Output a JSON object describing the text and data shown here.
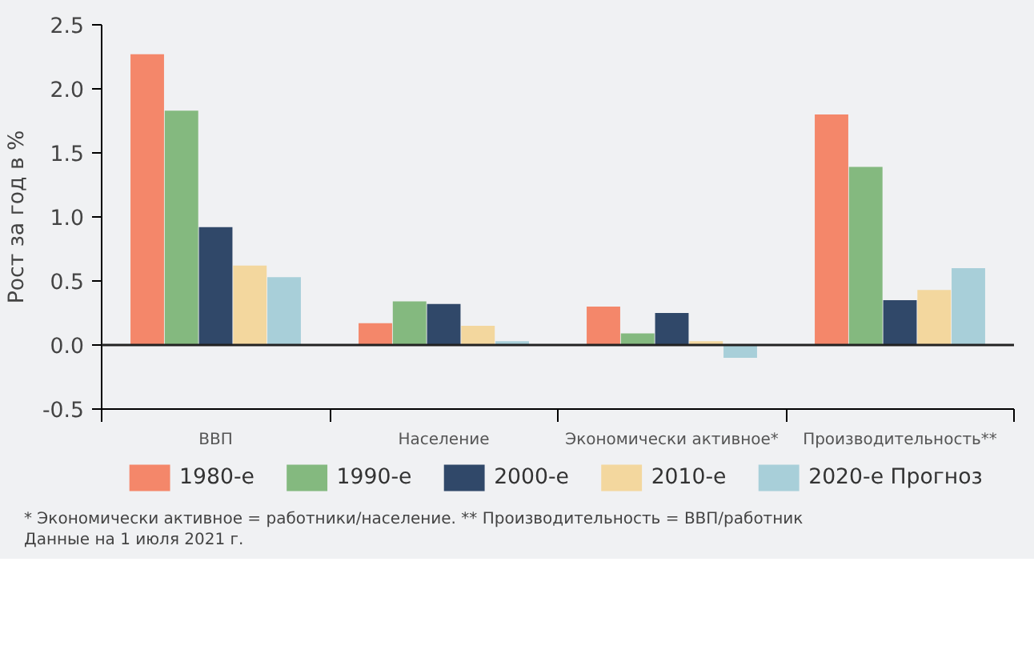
{
  "chart_data": {
    "type": "bar",
    "ylabel": "Рост за год в %",
    "categories": [
      "ВВП",
      "Население",
      "Экономически активное*",
      "Производительность**"
    ],
    "series": [
      {
        "name": "1980-е",
        "color": "#f4876a",
        "values": [
          2.27,
          0.17,
          0.3,
          1.8
        ]
      },
      {
        "name": "1990-е",
        "color": "#84b97f",
        "values": [
          1.83,
          0.34,
          0.09,
          1.39
        ]
      },
      {
        "name": "2000-е",
        "color": "#304869",
        "values": [
          0.92,
          0.32,
          0.25,
          0.35
        ]
      },
      {
        "name": "2010-е",
        "color": "#f3d79e",
        "values": [
          0.62,
          0.15,
          0.03,
          0.43
        ]
      },
      {
        "name": "2020-е Прогноз",
        "color": "#a8cfd9",
        "values": [
          0.53,
          0.03,
          -0.1,
          0.6
        ]
      }
    ],
    "ylim": [
      -0.5,
      2.5
    ],
    "yticks": [
      {
        "value": -0.5,
        "label": "-0.5"
      },
      {
        "value": 0,
        "label": "0.0"
      },
      {
        "value": 0.5,
        "label": "0.5"
      },
      {
        "value": 1,
        "label": "1.0"
      },
      {
        "value": 1.5,
        "label": "1.5"
      },
      {
        "value": 2,
        "label": "2.0"
      },
      {
        "value": 2.5,
        "label": "2.5"
      }
    ],
    "ref_lines": [
      {
        "axis": "y",
        "value": 0,
        "label": null,
        "color": "#222222"
      }
    ],
    "grid": false,
    "legend": "bottom",
    "annotations": [
      "* Экономически активное = работники/население. ** Производительность = ВВП/работник",
      "Данные на 1 июля 2021 г."
    ]
  }
}
